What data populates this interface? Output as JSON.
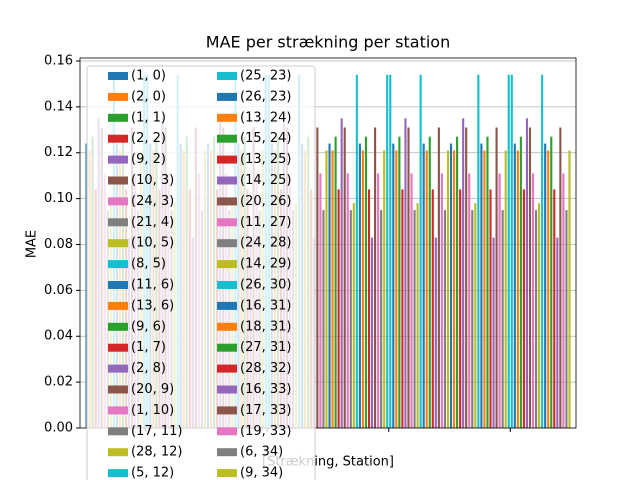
{
  "chart_data": {
    "type": "bar",
    "title": "MAE per strækning per station",
    "xlabel": "[Strækning, Station]",
    "ylabel": "MAE",
    "categories": [
      null,
      null,
      null,
      null
    ],
    "ylim": [
      0,
      0.1613
    ],
    "yticks": [
      {
        "value": 0,
        "label": "0.00"
      },
      {
        "value": 0.02,
        "label": "0.02"
      },
      {
        "value": 0.04,
        "label": "0.04"
      },
      {
        "value": 0.06,
        "label": "0.06"
      },
      {
        "value": 0.08,
        "label": "0.08"
      },
      {
        "value": 0.1,
        "label": "0.10"
      },
      {
        "value": 0.12,
        "label": "0.12"
      },
      {
        "value": 0.14,
        "label": "0.14"
      },
      {
        "value": 0.16,
        "label": "0.16"
      }
    ],
    "grid": true,
    "legend": "upper left",
    "legend_columns": 2,
    "series": [
      {
        "name": "(1, 0)",
        "color": "#1f77b4",
        "values": [
          0.124,
          0.124,
          0.124,
          0.124
        ]
      },
      {
        "name": "(2, 0)",
        "color": "#ff7f0e",
        "values": [
          0.121,
          0.121,
          0.121,
          0.121
        ]
      },
      {
        "name": "(1, 1)",
        "color": "#2ca02c",
        "values": [
          0.127,
          0.127,
          0.127,
          0.127
        ]
      },
      {
        "name": "(2, 2)",
        "color": "#d62728",
        "values": [
          0.104,
          0.104,
          0.104,
          0.104
        ]
      },
      {
        "name": "(9, 2)",
        "color": "#9467bd",
        "values": [
          0.135,
          0.135,
          0.135,
          0.135
        ]
      },
      {
        "name": "(10, 3)",
        "color": "#8c564b",
        "values": [
          0.131,
          0.131,
          0.131,
          0.131
        ]
      },
      {
        "name": "(24, 3)",
        "color": "#e377c2",
        "values": [
          0.111,
          0.111,
          0.111,
          0.111
        ]
      },
      {
        "name": "(21, 4)",
        "color": "#7f7f7f",
        "values": [
          0.095,
          0.095,
          0.095,
          0.095
        ]
      },
      {
        "name": "(10, 5)",
        "color": "#bcbd22",
        "values": [
          0.098,
          0.098,
          0.098,
          0.098
        ]
      },
      {
        "name": "(8, 5)",
        "color": "#17becf",
        "values": [
          0.154,
          0.154,
          0.154,
          0.154
        ]
      },
      {
        "name": "(11, 6)",
        "color": "#1f77b4",
        "values": [
          0.124,
          0.124,
          0.124,
          0.124
        ]
      },
      {
        "name": "(13, 6)",
        "color": "#ff7f0e",
        "values": [
          0.121,
          0.121,
          0.121,
          0.121
        ]
      },
      {
        "name": "(9, 6)",
        "color": "#2ca02c",
        "values": [
          0.127,
          0.127,
          0.127,
          0.127
        ]
      },
      {
        "name": "(1, 7)",
        "color": "#d62728",
        "values": [
          0.104,
          0.104,
          0.104,
          0.104
        ]
      },
      {
        "name": "(2, 8)",
        "color": "#9467bd",
        "values": [
          0.083,
          0.083,
          0.083,
          0.083
        ]
      },
      {
        "name": "(20, 9)",
        "color": "#8c564b",
        "values": [
          0.131,
          0.131,
          0.131,
          0.131
        ]
      },
      {
        "name": "(1, 10)",
        "color": "#e377c2",
        "values": [
          0.111,
          0.111,
          0.111,
          0.111
        ]
      },
      {
        "name": "(17, 11)",
        "color": "#7f7f7f",
        "values": [
          0.095,
          0.095,
          0.095,
          0.095
        ]
      },
      {
        "name": "(28, 12)",
        "color": "#bcbd22",
        "values": [
          0.121,
          0.121,
          0.121,
          0.121
        ]
      },
      {
        "name": "(5, 12)",
        "color": "#17becf",
        "values": [
          0.154,
          0.154,
          0.154,
          0.154
        ]
      },
      {
        "name": "(25, 23)",
        "color": "#17becf",
        "values": [
          0.154,
          0.154,
          0.154,
          0.154
        ]
      },
      {
        "name": "(26, 23)",
        "color": "#1f77b4",
        "values": [
          0.124,
          0.124,
          0.124,
          0.124
        ]
      },
      {
        "name": "(13, 24)",
        "color": "#ff7f0e",
        "values": [
          0.121,
          0.121,
          0.121,
          0.121
        ]
      },
      {
        "name": "(15, 24)",
        "color": "#2ca02c",
        "values": [
          0.127,
          0.127,
          0.127,
          0.127
        ]
      },
      {
        "name": "(13, 25)",
        "color": "#d62728",
        "values": [
          0.104,
          0.104,
          0.104,
          0.104
        ]
      },
      {
        "name": "(14, 25)",
        "color": "#9467bd",
        "values": [
          0.135,
          0.135,
          0.135,
          0.135
        ]
      },
      {
        "name": "(20, 26)",
        "color": "#8c564b",
        "values": [
          0.131,
          0.131,
          0.131,
          0.131
        ]
      },
      {
        "name": "(11, 27)",
        "color": "#e377c2",
        "values": [
          0.111,
          0.111,
          0.111,
          0.111
        ]
      },
      {
        "name": "(24, 28)",
        "color": "#7f7f7f",
        "values": [
          0.095,
          0.095,
          0.095,
          0.095
        ]
      },
      {
        "name": "(14, 29)",
        "color": "#bcbd22",
        "values": [
          0.098,
          0.098,
          0.098,
          0.098
        ]
      },
      {
        "name": "(26, 30)",
        "color": "#17becf",
        "values": [
          0.154,
          0.154,
          0.154,
          0.154
        ]
      },
      {
        "name": "(16, 31)",
        "color": "#1f77b4",
        "values": [
          0.124,
          0.124,
          0.124,
          0.124
        ]
      },
      {
        "name": "(18, 31)",
        "color": "#ff7f0e",
        "values": [
          0.121,
          0.121,
          0.121,
          0.121
        ]
      },
      {
        "name": "(27, 31)",
        "color": "#2ca02c",
        "values": [
          0.127,
          0.127,
          0.127,
          0.127
        ]
      },
      {
        "name": "(28, 32)",
        "color": "#d62728",
        "values": [
          0.104,
          0.104,
          0.104,
          0.104
        ]
      },
      {
        "name": "(16, 33)",
        "color": "#9467bd",
        "values": [
          0.083,
          0.083,
          0.083,
          0.083
        ]
      },
      {
        "name": "(17, 33)",
        "color": "#8c564b",
        "values": [
          0.131,
          0.131,
          0.131,
          0.131
        ]
      },
      {
        "name": "(19, 33)",
        "color": "#e377c2",
        "values": [
          0.111,
          0.111,
          0.111,
          0.111
        ]
      },
      {
        "name": "(6, 34)",
        "color": "#7f7f7f",
        "values": [
          0.095,
          0.095,
          0.095,
          0.095
        ]
      },
      {
        "name": "(9, 34)",
        "color": "#bcbd22",
        "values": [
          0.121,
          0.121,
          0.121,
          0.121
        ]
      }
    ]
  }
}
